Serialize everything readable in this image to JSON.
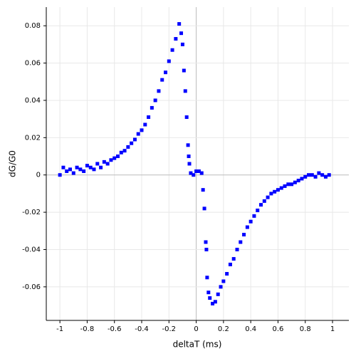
{
  "chart_data": {
    "type": "scatter",
    "xlabel": "deltaT (ms)",
    "ylabel": "dG/G0",
    "xlim": [
      -1.1,
      1.12
    ],
    "ylim": [
      -0.078,
      0.09
    ],
    "xticks": [
      -1,
      -0.8,
      -0.6,
      -0.4,
      -0.2,
      0,
      0.2,
      0.4,
      0.6,
      0.8,
      1
    ],
    "yticks": [
      -0.06,
      -0.04,
      -0.02,
      0,
      0.02,
      0.04,
      0.06,
      0.08
    ],
    "grid": true,
    "series": [
      {
        "color": "#0000ff",
        "x": [
          -1,
          -0.975,
          -0.95,
          -0.925,
          -0.9,
          -0.875,
          -0.85,
          -0.825,
          -0.8,
          -0.775,
          -0.75,
          -0.725,
          -0.7,
          -0.675,
          -0.65,
          -0.625,
          -0.6,
          -0.575,
          -0.55,
          -0.525,
          -0.5,
          -0.475,
          -0.45,
          -0.425,
          -0.4,
          -0.375,
          -0.35,
          -0.325,
          -0.3,
          -0.275,
          -0.25,
          -0.225,
          -0.2,
          -0.175,
          -0.15,
          -0.125,
          -0.11,
          -0.1,
          -0.09,
          -0.08,
          -0.07,
          -0.06,
          -0.055,
          -0.05,
          -0.04,
          -0.02,
          0,
          0.02,
          0.04,
          0.05,
          0.06,
          0.07,
          0.075,
          0.08,
          0.09,
          0.1,
          0.12,
          0.14,
          0.16,
          0.18,
          0.2,
          0.225,
          0.25,
          0.275,
          0.3,
          0.325,
          0.35,
          0.375,
          0.4,
          0.425,
          0.45,
          0.475,
          0.5,
          0.525,
          0.55,
          0.575,
          0.6,
          0.625,
          0.65,
          0.675,
          0.7,
          0.725,
          0.75,
          0.775,
          0.8,
          0.825,
          0.85,
          0.875,
          0.9,
          0.925,
          0.95,
          0.975
        ],
        "values": [
          0.0,
          0.004,
          0.002,
          0.003,
          0.001,
          0.004,
          0.003,
          0.002,
          0.005,
          0.004,
          0.003,
          0.006,
          0.004,
          0.007,
          0.006,
          0.008,
          0.009,
          0.01,
          0.012,
          0.013,
          0.015,
          0.017,
          0.019,
          0.022,
          0.024,
          0.027,
          0.031,
          0.036,
          0.04,
          0.045,
          0.051,
          0.055,
          0.061,
          0.067,
          0.073,
          0.081,
          0.076,
          0.07,
          0.056,
          0.045,
          0.031,
          0.016,
          0.01,
          0.006,
          0.001,
          0.0,
          0.002,
          0.002,
          0.001,
          -0.008,
          -0.018,
          -0.036,
          -0.04,
          -0.055,
          -0.063,
          -0.066,
          -0.069,
          -0.068,
          -0.064,
          -0.06,
          -0.057,
          -0.053,
          -0.048,
          -0.045,
          -0.04,
          -0.036,
          -0.032,
          -0.028,
          -0.025,
          -0.022,
          -0.019,
          -0.016,
          -0.014,
          -0.012,
          -0.01,
          -0.009,
          -0.008,
          -0.007,
          -0.006,
          -0.005,
          -0.005,
          -0.004,
          -0.003,
          -0.002,
          -0.001,
          0.0,
          0.0,
          -0.001,
          0.001,
          0.0,
          -0.001,
          0.0
        ]
      }
    ]
  }
}
